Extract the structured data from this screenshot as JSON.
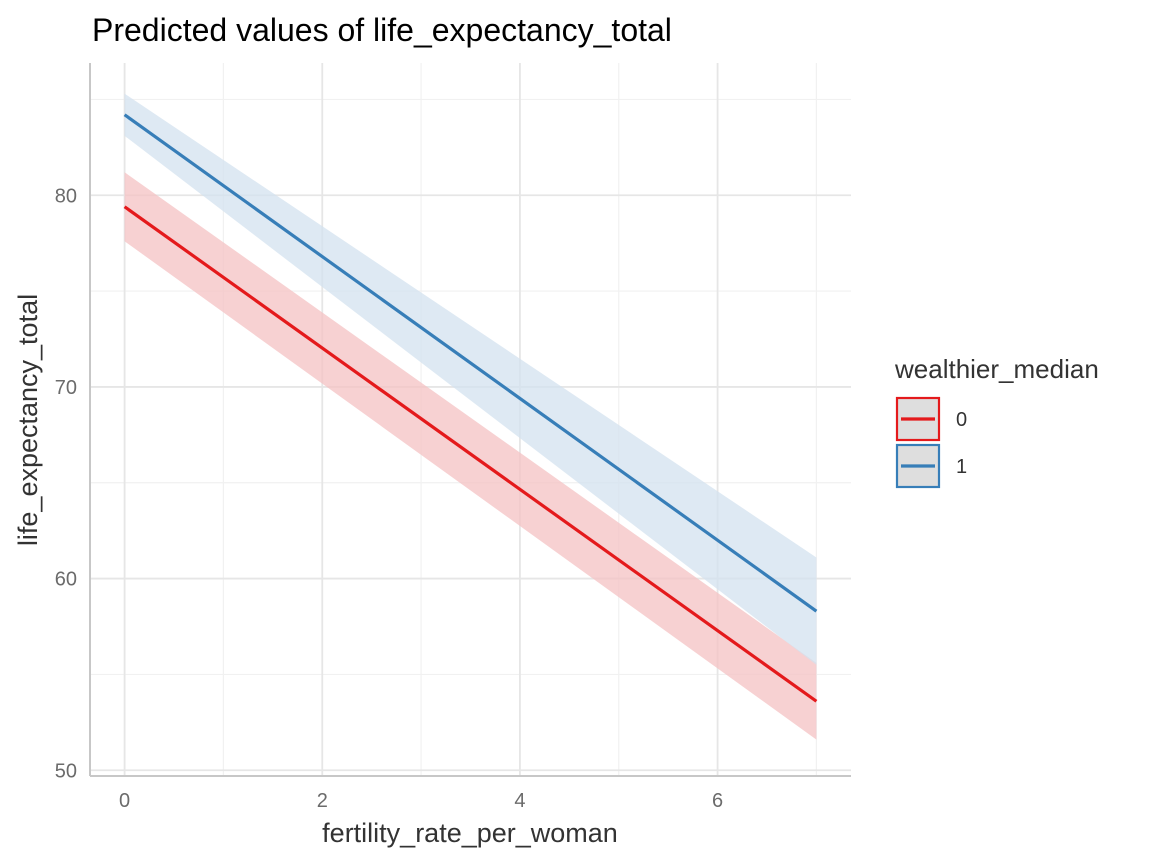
{
  "chart_data": {
    "type": "line",
    "title": "Predicted values of life_expectancy_total",
    "xlabel": "fertility_rate_per_woman",
    "ylabel": "life_expectancy_total",
    "xlim": [
      -0.35,
      7.35
    ],
    "ylim": [
      49.7,
      86.9
    ],
    "x_ticks": [
      0,
      2,
      4,
      6
    ],
    "x_tick_labels": [
      "0",
      "2",
      "4",
      "6"
    ],
    "y_ticks": [
      50,
      60,
      70,
      80
    ],
    "y_tick_labels": [
      "50",
      "60",
      "70",
      "80"
    ],
    "x_minor_ticks": [
      1,
      3,
      5,
      7
    ],
    "y_minor_ticks": [
      55,
      65,
      75,
      85
    ],
    "grid": true,
    "legend": {
      "title": "wealthier_median",
      "position": "right",
      "entries": [
        "0",
        "1"
      ]
    },
    "series": [
      {
        "name": "0",
        "color": "#E41A1C",
        "ribbon_color": "#F4C2C3",
        "x": [
          0,
          7
        ],
        "y": [
          79.4,
          53.6
        ],
        "ci_low": [
          77.6,
          51.6
        ],
        "ci_high": [
          81.2,
          55.6
        ]
      },
      {
        "name": "1",
        "color": "#377EB8",
        "ribbon_color": "#D3E2EF",
        "x": [
          0,
          7
        ],
        "y": [
          84.2,
          58.3
        ],
        "ci_low": [
          83.1,
          55.5
        ],
        "ci_high": [
          85.3,
          61.1
        ]
      }
    ]
  }
}
